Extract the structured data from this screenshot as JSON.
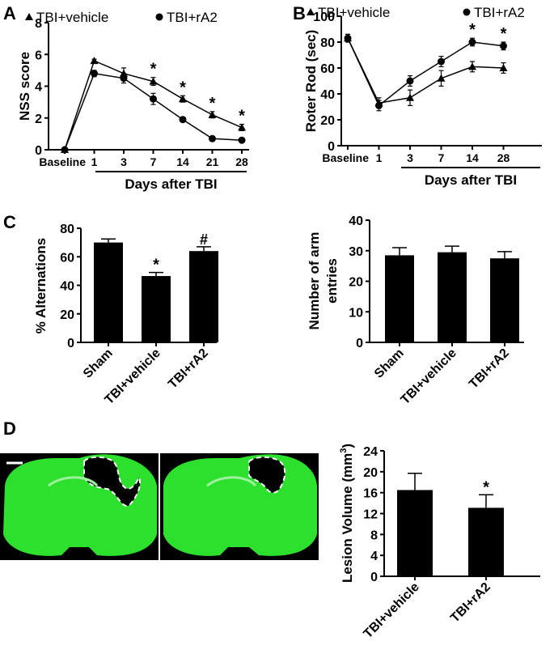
{
  "panel_labels": [
    "A",
    "B",
    "C",
    "D"
  ],
  "scale_bar_color": "#ffffff",
  "brain_color": "#2ee02e",
  "chart_data": [
    {
      "id": "A",
      "type": "line",
      "ylabel": "NSS score",
      "xlabel": "Days after TBI",
      "categories": [
        "Baseline",
        "1",
        "3",
        "7",
        "14",
        "21",
        "28"
      ],
      "ylim": [
        0,
        8
      ],
      "yticks": [
        "0",
        "2",
        "4",
        "6",
        "8"
      ],
      "series": [
        {
          "name": "TBI+vehicle",
          "marker": "triangle",
          "values": [
            0,
            5.6,
            4.8,
            4.3,
            3.2,
            2.2,
            1.4
          ],
          "err": [
            0,
            0.1,
            0.35,
            0.25,
            0.2,
            0.2,
            0.2
          ]
        },
        {
          "name": "TBI+rA2",
          "marker": "circle",
          "values": [
            0,
            4.8,
            4.5,
            3.2,
            1.9,
            0.7,
            0.6
          ],
          "err": [
            0,
            0.2,
            0.3,
            0.35,
            0.15,
            0.1,
            0.1
          ]
        }
      ],
      "sig": [
        "",
        "",
        "",
        "*",
        "*",
        "*",
        "*"
      ]
    },
    {
      "id": "B",
      "type": "line",
      "ylabel": "Roter Rod (sec)",
      "xlabel": "Days after TBI",
      "categories": [
        "Baseline",
        "1",
        "3",
        "7",
        "14",
        "28"
      ],
      "ylim": [
        0,
        100
      ],
      "yticks": [
        "0",
        "20",
        "40",
        "60",
        "80",
        "100"
      ],
      "series": [
        {
          "name": "TBI+vehicle",
          "marker": "triangle",
          "values": [
            83,
            33,
            37,
            52,
            61,
            60
          ],
          "err": [
            3,
            4,
            6,
            6,
            4,
            4
          ]
        },
        {
          "name": "TBI+rA2",
          "marker": "circle",
          "values": [
            83,
            31,
            50,
            65,
            80,
            77
          ],
          "err": [
            3,
            4,
            4,
            4,
            3,
            3
          ]
        }
      ],
      "sig": [
        "",
        "",
        "",
        "",
        "*",
        "*"
      ]
    },
    {
      "id": "C1",
      "type": "bar",
      "ylabel": "% Alternations",
      "categories": [
        "Sham",
        "TBI+vehicle",
        "TBI+rA2"
      ],
      "values": [
        70,
        46.5,
        64
      ],
      "err": [
        2.5,
        2.5,
        3
      ],
      "sig": [
        "",
        "*",
        "#"
      ],
      "ylim": [
        0,
        80
      ],
      "yticks": [
        "0",
        "20",
        "40",
        "60",
        "80"
      ]
    },
    {
      "id": "C2",
      "type": "bar",
      "ylabel": "Number of arm entries",
      "categories": [
        "Sham",
        "TBI+vehicle",
        "TBI+rA2"
      ],
      "values": [
        28.5,
        29.5,
        27.5
      ],
      "err": [
        2.5,
        2,
        2.2
      ],
      "sig": [
        "",
        "",
        ""
      ],
      "ylim": [
        0,
        40
      ],
      "yticks": [
        "0",
        "10",
        "20",
        "30",
        "40"
      ]
    },
    {
      "id": "D",
      "type": "bar",
      "ylabel": "Lesion Volume (mm",
      "ylabel_sup": "3",
      "ylabel_tail": ")",
      "categories": [
        "TBI+vehicle",
        "TBI+rA2"
      ],
      "values": [
        16.5,
        13.1
      ],
      "err": [
        3.2,
        2.5
      ],
      "sig": [
        "",
        "*"
      ],
      "ylim": [
        0,
        24
      ],
      "yticks": [
        "0",
        "4",
        "8",
        "12",
        "16",
        "20",
        "24"
      ]
    }
  ]
}
